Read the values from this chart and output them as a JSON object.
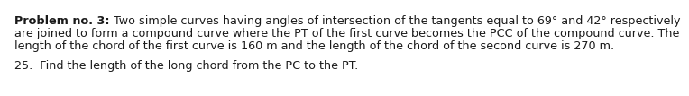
{
  "line1_bold": "Problem no. 3:",
  "line1_normal": " Two simple curves having angles of intersection of the tangents equal to 69° and 42° respectively",
  "line2": "are joined to form a compound curve where the PT of the first curve becomes the PCC of the compound curve. The",
  "line3": "length of the chord of the first curve is 160 m and the length of the chord of the second curve is 270 m.",
  "line5": "25.  Find the length of the long chord from the PC to the PT.",
  "font_size": 9.2,
  "text_color": "#1a1a1a",
  "background_color": "#ffffff"
}
